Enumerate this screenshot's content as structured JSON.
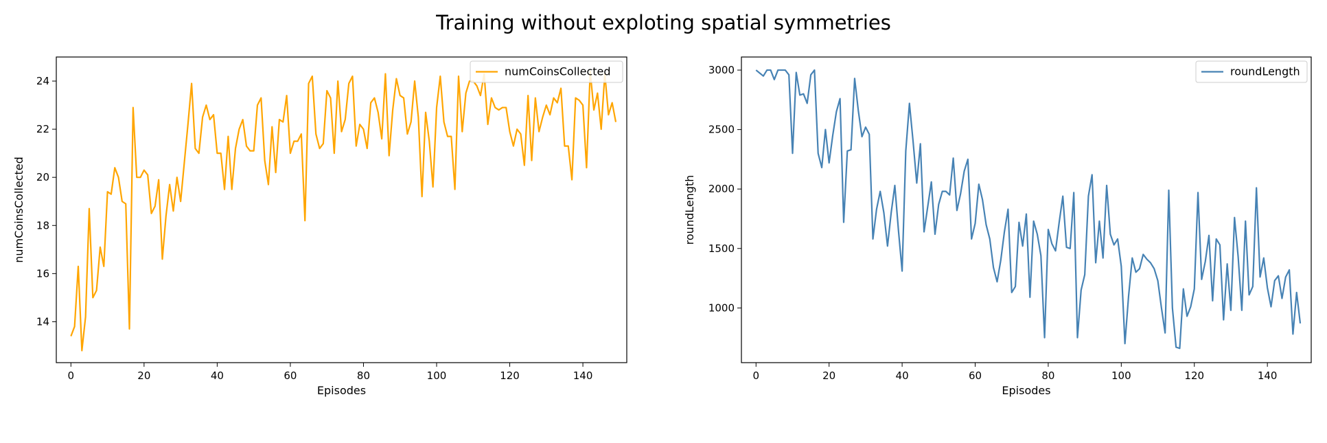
{
  "figure": {
    "title": "Training without exploting spatial symmetries"
  },
  "chart_data": [
    {
      "type": "line",
      "xlabel": "Episodes",
      "ylabel": "numCoinsCollected",
      "xlim": [
        -4,
        152
      ],
      "ylim": [
        12.3,
        25.0
      ],
      "xticks": [
        0,
        20,
        40,
        60,
        80,
        100,
        120,
        140
      ],
      "yticks": [
        14,
        16,
        18,
        20,
        22,
        24
      ],
      "grid": false,
      "legend": "top-right",
      "series": [
        {
          "name": "numCoinsCollected",
          "color": "#ffa500",
          "values": [
            13.4,
            13.8,
            16.3,
            12.8,
            14.2,
            18.7,
            15.0,
            15.3,
            17.1,
            16.3,
            19.4,
            19.3,
            20.4,
            20.0,
            19.0,
            18.9,
            13.7,
            22.9,
            20.0,
            20.0,
            20.3,
            20.1,
            18.5,
            18.8,
            19.9,
            16.6,
            18.4,
            19.7,
            18.6,
            20.0,
            19.0,
            20.6,
            22.2,
            23.9,
            21.2,
            21.0,
            22.5,
            23.0,
            22.4,
            22.6,
            21.0,
            21.0,
            19.5,
            21.7,
            19.5,
            21.2,
            22.0,
            22.4,
            21.3,
            21.1,
            21.1,
            23.0,
            23.3,
            20.7,
            19.7,
            22.1,
            20.2,
            22.4,
            22.3,
            23.4,
            21.0,
            21.5,
            21.5,
            21.8,
            18.2,
            23.9,
            24.2,
            21.8,
            21.2,
            21.4,
            23.6,
            23.3,
            21.0,
            24.0,
            21.9,
            22.4,
            23.9,
            24.2,
            21.3,
            22.2,
            22.0,
            21.2,
            23.1,
            23.3,
            22.7,
            21.6,
            24.3,
            20.9,
            22.8,
            24.1,
            23.4,
            23.3,
            21.8,
            22.3,
            24.0,
            22.5,
            19.2,
            22.7,
            21.5,
            19.6,
            22.9,
            24.2,
            22.3,
            21.7,
            21.7,
            19.5,
            24.2,
            21.9,
            23.5,
            24.0,
            24.0,
            23.8,
            23.4,
            24.3,
            22.2,
            23.3,
            22.9,
            22.8,
            22.9,
            22.9,
            21.9,
            21.3,
            22.0,
            21.8,
            20.5,
            23.4,
            20.7,
            23.3,
            21.9,
            22.5,
            23.0,
            22.6,
            23.3,
            23.1,
            23.7,
            21.3,
            21.3,
            19.9,
            23.3,
            23.2,
            23.0,
            20.4,
            24.4,
            22.8,
            23.5,
            22.0,
            24.3,
            22.6,
            23.1,
            22.3
          ]
        }
      ]
    },
    {
      "type": "line",
      "xlabel": "Episodes",
      "ylabel": "roundLength",
      "xlim": [
        -4,
        152
      ],
      "ylim": [
        540,
        3110
      ],
      "xticks": [
        0,
        20,
        40,
        60,
        80,
        100,
        120,
        140
      ],
      "yticks": [
        1000,
        1500,
        2000,
        2500,
        3000
      ],
      "grid": false,
      "legend": "top-right",
      "series": [
        {
          "name": "roundLength",
          "color": "#4682b4",
          "values": [
            3000,
            2975,
            2950,
            3000,
            3000,
            2920,
            3000,
            3000,
            3000,
            2960,
            2300,
            2980,
            2790,
            2800,
            2720,
            2960,
            3000,
            2300,
            2180,
            2500,
            2220,
            2450,
            2650,
            2760,
            1720,
            2320,
            2330,
            2930,
            2660,
            2440,
            2520,
            2460,
            1580,
            1830,
            1980,
            1800,
            1520,
            1800,
            2030,
            1650,
            1310,
            2320,
            2720,
            2400,
            2050,
            2380,
            1640,
            1850,
            2060,
            1620,
            1870,
            1980,
            1980,
            1950,
            2260,
            1820,
            1960,
            2150,
            2250,
            1580,
            1710,
            2040,
            1910,
            1700,
            1580,
            1340,
            1220,
            1400,
            1640,
            1830,
            1130,
            1180,
            1720,
            1520,
            1790,
            1090,
            1730,
            1620,
            1440,
            750,
            1660,
            1540,
            1480,
            1720,
            1940,
            1510,
            1500,
            1970,
            750,
            1150,
            1280,
            1940,
            2120,
            1380,
            1730,
            1420,
            2030,
            1620,
            1530,
            1580,
            1350,
            700,
            1100,
            1420,
            1300,
            1330,
            1450,
            1410,
            1380,
            1330,
            1230,
            1000,
            790,
            1990,
            1000,
            670,
            660,
            1160,
            930,
            1010,
            1160,
            1970,
            1240,
            1390,
            1610,
            1060,
            1580,
            1530,
            900,
            1370,
            980,
            1760,
            1430,
            980,
            1730,
            1110,
            1180,
            2010,
            1260,
            1420,
            1170,
            1010,
            1230,
            1270,
            1080,
            1260,
            1320,
            780,
            1130,
            870
          ]
        }
      ]
    }
  ]
}
